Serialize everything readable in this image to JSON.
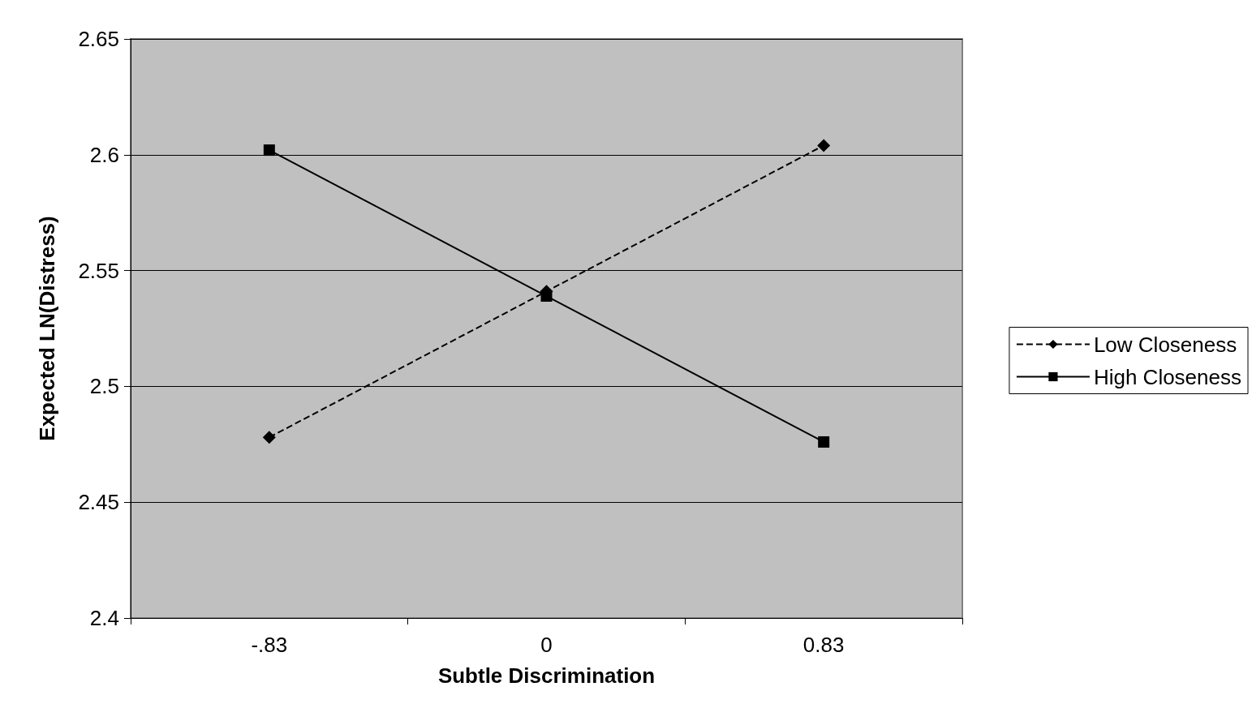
{
  "chart_data": {
    "type": "line",
    "xlabel": "Subtle Discrimination",
    "ylabel": "Expected LN(Distress)",
    "categories": [
      "-.83",
      "0",
      "0.83"
    ],
    "series": [
      {
        "name": "Low Closeness",
        "color": "#000000",
        "marker": "diamond",
        "line_style": "dashed",
        "values": [
          2.478,
          2.541,
          2.604
        ]
      },
      {
        "name": "High Closeness",
        "color": "#000000",
        "marker": "square",
        "line_style": "solid",
        "values": [
          2.602,
          2.539,
          2.476
        ]
      }
    ],
    "ylim": [
      2.4,
      2.65
    ],
    "yticks": [
      2.4,
      2.45,
      2.5,
      2.55,
      2.6,
      2.65
    ],
    "grid": "y",
    "legend": "right"
  }
}
